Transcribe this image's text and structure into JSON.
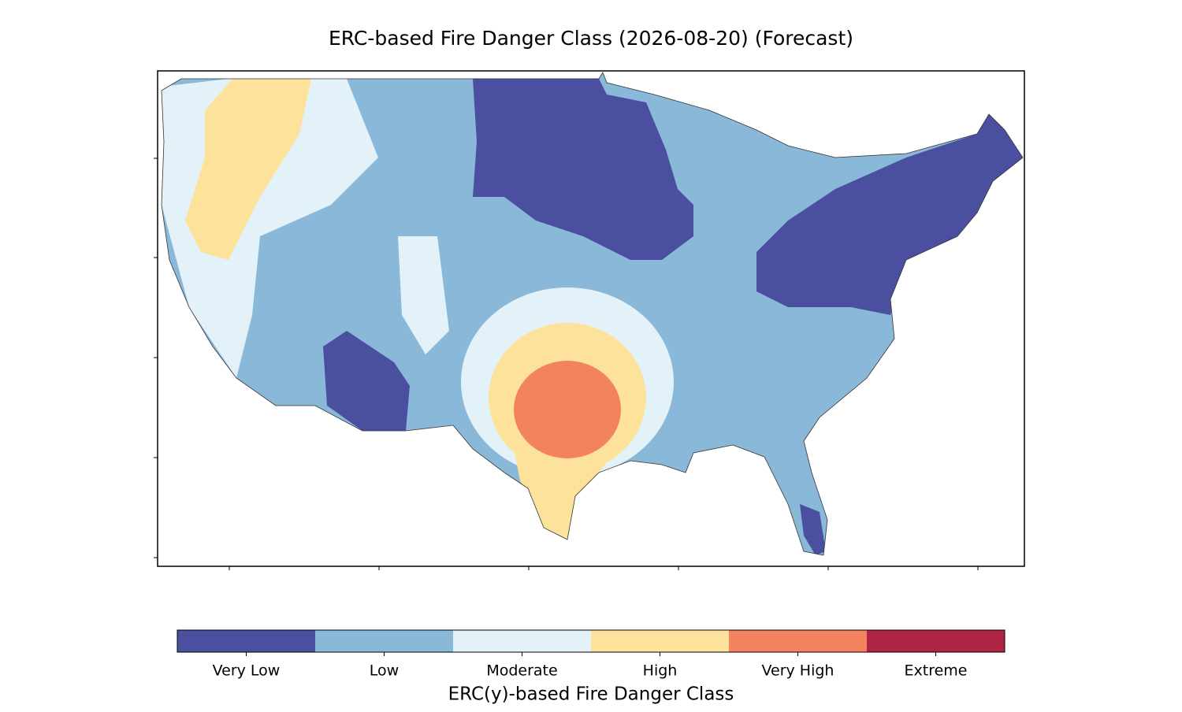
{
  "title": "ERC-based Fire Danger Class (2026-08-20) (Forecast)",
  "colorbar": {
    "label": "ERC(y)-based Fire Danger Class",
    "classes": [
      {
        "label": "Very Low",
        "color": "#4a4fa0"
      },
      {
        "label": "Low",
        "color": "#8ab8d8"
      },
      {
        "label": "Moderate",
        "color": "#e3f2f8"
      },
      {
        "label": "High",
        "color": "#fde29b"
      },
      {
        "label": "Very High",
        "color": "#f3825f"
      },
      {
        "label": "Extreme",
        "color": "#b02443"
      }
    ]
  }
}
